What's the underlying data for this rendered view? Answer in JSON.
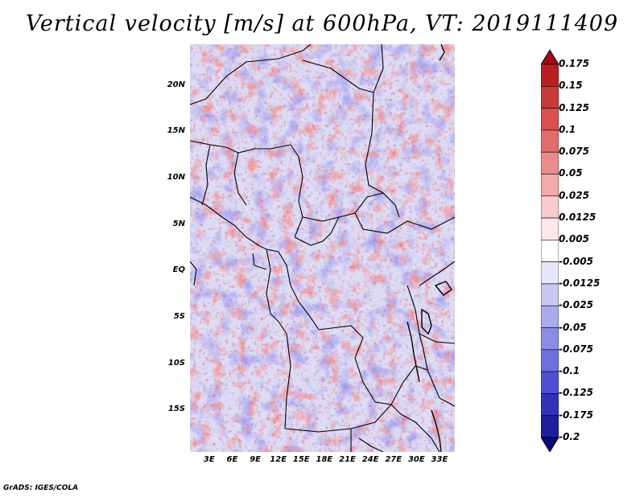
{
  "title": "Vertical velocity [m/s] at 600hPa, VT: 2019111409",
  "footer": "GrADS: IGES/COLA",
  "map": {
    "lat_labels": [
      "20N",
      "15N",
      "10N",
      "5N",
      "EQ",
      "5S",
      "10S",
      "15S"
    ],
    "lat_values": [
      20,
      15,
      10,
      5,
      0,
      -5,
      -10,
      -15
    ],
    "lon_labels": [
      "3E",
      "6E",
      "9E",
      "12E",
      "15E",
      "18E",
      "21E",
      "24E",
      "27E",
      "30E",
      "33E"
    ],
    "lon_values": [
      3,
      6,
      9,
      12,
      15,
      18,
      21,
      24,
      27,
      30,
      33
    ],
    "lat_range": [
      -19.5,
      24.5
    ],
    "lon_range": [
      0.5,
      35
    ]
  },
  "colorbar": {
    "labels": [
      "0.175",
      "0.15",
      "0.125",
      "0.1",
      "0.075",
      "0.05",
      "0.025",
      "0.0125",
      "0.005",
      "-0.005",
      "-0.0125",
      "-0.025",
      "-0.05",
      "-0.075",
      "-0.1",
      "-0.125",
      "-0.175",
      "-0.2"
    ],
    "colors": [
      "#a00a14",
      "#b81e24",
      "#c93a3a",
      "#d85050",
      "#e26c6c",
      "#ea8c8c",
      "#f2aaaa",
      "#f8cccc",
      "#fce8e8",
      "#ffffff",
      "#e6e6fa",
      "#c8c8f2",
      "#aaaaee",
      "#8c8ce6",
      "#6e6ede",
      "#5050d0",
      "#3232b8",
      "#1e1e9c",
      "#0a0a78"
    ]
  }
}
